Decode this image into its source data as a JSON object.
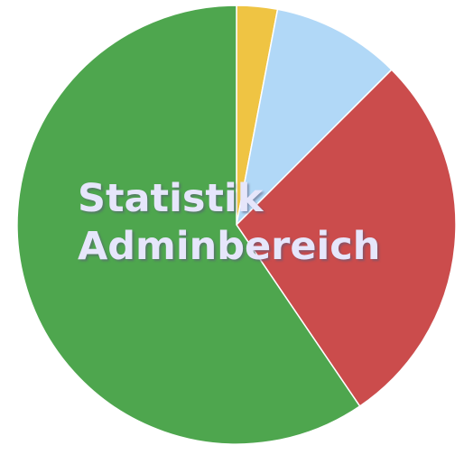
{
  "chart_data": {
    "type": "pie",
    "title": "Statistik Adminbereich",
    "title_lines": [
      "Statistik",
      "Adminbereich"
    ],
    "start_angle_deg": 0,
    "direction": "clockwise",
    "slices": [
      {
        "value": 3,
        "color": "#efc443"
      },
      {
        "value": 9.5,
        "color": "#b1d8f7"
      },
      {
        "value": 28,
        "color": "#cb4c4c"
      },
      {
        "value": 59.5,
        "color": "#4ea64e"
      }
    ],
    "legend": "none",
    "data_labels": false
  }
}
